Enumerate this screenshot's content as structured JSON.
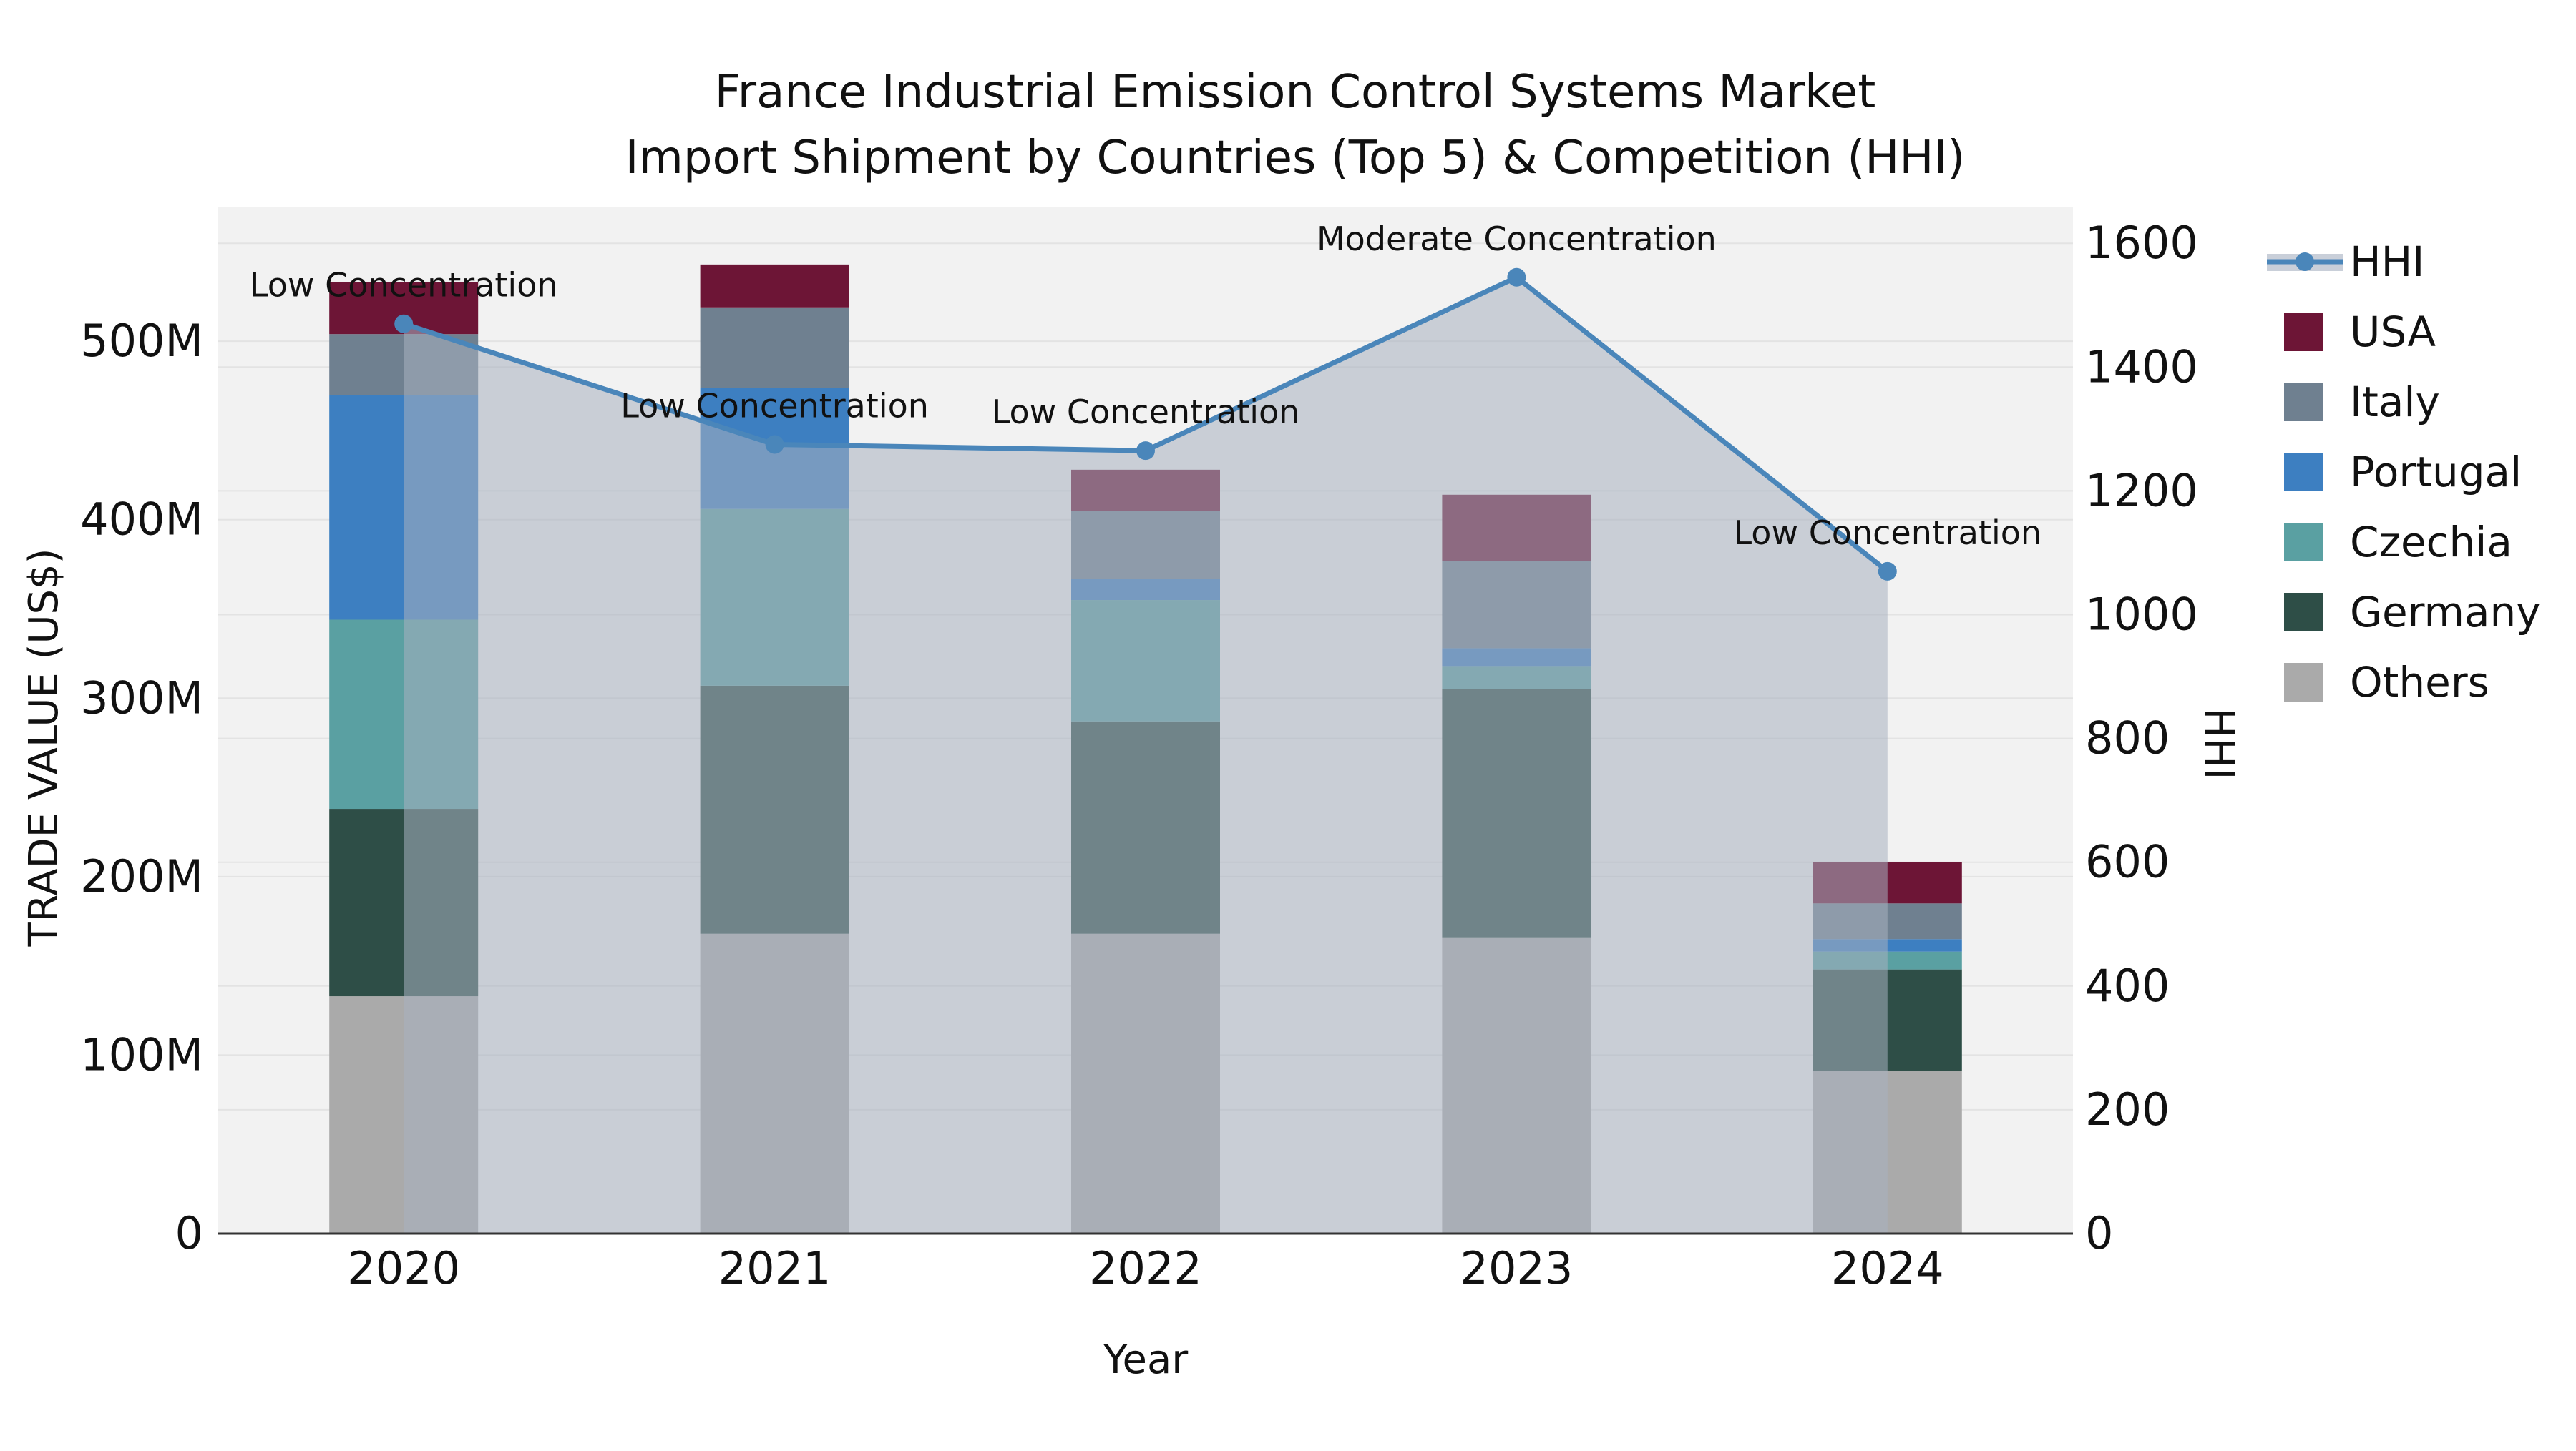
{
  "chart_data": {
    "type": "bar",
    "title": {
      "line1": "France Industrial Emission Control Systems Market",
      "line2": "Import Shipment by Countries (Top 5) & Competition (HHI)"
    },
    "xlabel": "Year",
    "ylabel_left": "TRADE VALUE (US$)",
    "ylabel_right": "HHI",
    "categories": [
      "2020",
      "2021",
      "2022",
      "2023",
      "2024"
    ],
    "unit": "M US$",
    "series": [
      {
        "name": "Others",
        "color": "#aaaaaa",
        "values": [
          133,
          168,
          168,
          166,
          91
        ]
      },
      {
        "name": "Germany",
        "color": "#2e4e47",
        "values": [
          105,
          139,
          119,
          139,
          57
        ]
      },
      {
        "name": "Czechia",
        "color": "#5aa0a2",
        "values": [
          106,
          99,
          68,
          13,
          10
        ]
      },
      {
        "name": "Portugal",
        "color": "#3d7fc1",
        "values": [
          126,
          68,
          12,
          10,
          7
        ]
      },
      {
        "name": "Italy",
        "color": "#6f8090",
        "values": [
          34,
          45,
          38,
          49,
          20
        ]
      },
      {
        "name": "USA",
        "color": "#6d1536",
        "values": [
          29,
          24,
          23,
          37,
          23
        ]
      }
    ],
    "stack_totals": [
      533,
      543,
      428,
      414,
      208
    ],
    "line": {
      "name": "HHI",
      "color": "#4a86ba",
      "area_color": "rgba(167,177,192,0.55)",
      "values": [
        1470,
        1275,
        1265,
        1545,
        1070
      ],
      "annotations": [
        "Low Concentration",
        "Low Concentration",
        "Low Concentration",
        "Moderate Concentration",
        "Low Concentration"
      ]
    },
    "axes": {
      "ylim_left": [
        0,
        575
      ],
      "ylim_right": [
        0,
        1658
      ],
      "left_ticks": [
        {
          "v": 0,
          "label": "0"
        },
        {
          "v": 100,
          "label": "100M"
        },
        {
          "v": 200,
          "label": "200M"
        },
        {
          "v": 300,
          "label": "300M"
        },
        {
          "v": 400,
          "label": "400M"
        },
        {
          "v": 500,
          "label": "500M"
        }
      ],
      "right_ticks": [
        {
          "v": 0,
          "label": "0"
        },
        {
          "v": 200,
          "label": "200"
        },
        {
          "v": 400,
          "label": "400"
        },
        {
          "v": 600,
          "label": "600"
        },
        {
          "v": 800,
          "label": "800"
        },
        {
          "v": 1000,
          "label": "1000"
        },
        {
          "v": 1200,
          "label": "1200"
        },
        {
          "v": 1400,
          "label": "1400"
        },
        {
          "v": 1600,
          "label": "1600"
        }
      ],
      "grid": true,
      "legend_position": "right"
    },
    "legend": [
      {
        "name": "HHI",
        "type": "line",
        "color": "#4a86ba"
      },
      {
        "name": "USA",
        "type": "swatch",
        "color": "#6d1536"
      },
      {
        "name": "Italy",
        "type": "swatch",
        "color": "#6f8090"
      },
      {
        "name": "Portugal",
        "type": "swatch",
        "color": "#3d7fc1"
      },
      {
        "name": "Czechia",
        "type": "swatch",
        "color": "#5aa0a2"
      },
      {
        "name": "Germany",
        "type": "swatch",
        "color": "#2e4e47"
      },
      {
        "name": "Others",
        "type": "swatch",
        "color": "#aaaaaa"
      }
    ],
    "style": {
      "plot_bg": "#f2f2f2",
      "grid_color": "#e3e3e3",
      "axis_line_color": "#333333",
      "legend_band_color": "#c9cfd9"
    }
  }
}
